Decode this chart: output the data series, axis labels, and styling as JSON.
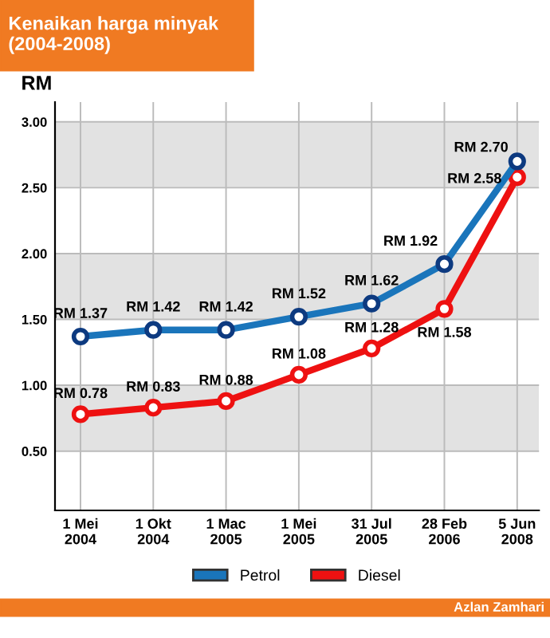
{
  "chart_data": {
    "type": "line",
    "title": "Kenaikan harga minyak\n(2004-2008)",
    "ylabel": "RM",
    "categories": [
      "1 Mei\n2004",
      "1 Okt\n2004",
      "1 Mac\n2005",
      "1 Mei\n2005",
      "31 Jul\n2005",
      "28 Feb\n2006",
      "5 Jun\n2008"
    ],
    "series": [
      {
        "name": "Petrol",
        "color": "#1a75bb",
        "values": [
          1.37,
          1.42,
          1.42,
          1.52,
          1.62,
          1.92,
          2.7
        ],
        "value_labels": [
          "RM 1.37",
          "RM 1.42",
          "RM 1.42",
          "RM 1.52",
          "RM 1.62",
          "RM 1.92",
          "RM 2.70"
        ]
      },
      {
        "name": "Diesel",
        "color": "#ee1111",
        "values": [
          0.78,
          0.83,
          0.88,
          1.08,
          1.28,
          1.58,
          2.58
        ],
        "value_labels": [
          "RM 0.78",
          "RM 0.83",
          "RM 0.88",
          "RM 1.08",
          "RM 1.28",
          "RM 1.58",
          "RM 2.58"
        ]
      }
    ],
    "ylim": [
      0.05,
      3.15
    ],
    "yticks": [
      {
        "value": 0.5,
        "label": "0.50"
      },
      {
        "value": 1.0,
        "label": "1.00"
      },
      {
        "value": 1.5,
        "label": "1.50"
      },
      {
        "value": 2.0,
        "label": "2.00"
      },
      {
        "value": 2.5,
        "label": "2.50"
      },
      {
        "value": 3.0,
        "label": "3.00"
      }
    ],
    "bands": [
      {
        "axis": "y",
        "from": 0.5,
        "to": 1.0,
        "color": "#e2e2e2"
      },
      {
        "axis": "y",
        "from": 1.5,
        "to": 2.0,
        "color": "#e2e2e2"
      },
      {
        "axis": "y",
        "from": 2.5,
        "to": 3.0,
        "color": "#e2e2e2"
      }
    ],
    "grid": true,
    "marker": "circle",
    "line_style": "solid",
    "legend": "bottom",
    "annotations": [
      "Azlan Zamhari"
    ]
  }
}
